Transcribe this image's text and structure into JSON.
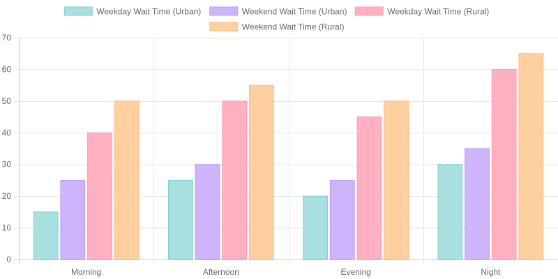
{
  "chart_data": {
    "type": "bar",
    "categories": [
      "Morning",
      "Afternoon",
      "Evening",
      "Night"
    ],
    "series": [
      {
        "name": "Weekday Wait Time (Urban)",
        "values": [
          15,
          25,
          20,
          30
        ],
        "fill": "#a8e0e0",
        "stroke": "#7fd0d0"
      },
      {
        "name": "Weekend Wait Time (Urban)",
        "values": [
          25,
          30,
          25,
          35
        ],
        "fill": "#cdb4fb",
        "stroke": "#b99cf7"
      },
      {
        "name": "Weekday Wait Time (Rural)",
        "values": [
          40,
          50,
          45,
          60
        ],
        "fill": "#ffb1c1",
        "stroke": "#ff9bb0"
      },
      {
        "name": "Weekend Wait Time (Rural)",
        "values": [
          50,
          55,
          50,
          65
        ],
        "fill": "#ffcf9f",
        "stroke": "#ffbd80"
      }
    ],
    "ylim": [
      0,
      70
    ],
    "yticks": [
      0,
      10,
      20,
      30,
      40,
      50,
      60,
      70
    ],
    "grid": true,
    "legend": "top-center",
    "title": "",
    "xlabel": "",
    "ylabel": ""
  }
}
